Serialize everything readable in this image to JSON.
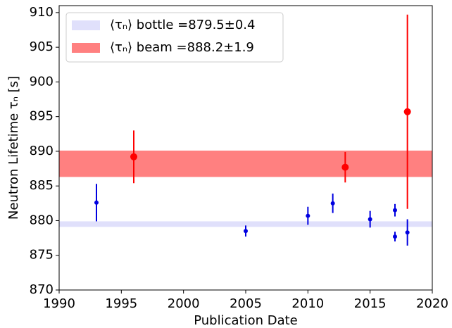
{
  "chart_data": {
    "type": "errorbar",
    "xlabel": "Publication Date",
    "ylabel": "Neutron Lifetime τₙ [s]",
    "xlim": [
      1990,
      2020
    ],
    "xticks": [
      1990,
      1995,
      2000,
      2005,
      2010,
      2015,
      2020
    ],
    "ylim": [
      870,
      911
    ],
    "yticks": [
      870,
      875,
      880,
      885,
      890,
      895,
      900,
      905,
      910
    ],
    "legend": "upper left",
    "bands": [
      {
        "name": "⟨τₙ⟩ bottle =879.5±0.4",
        "color": "#e0e0fb",
        "value": 879.5,
        "error": 0.4
      },
      {
        "name": "⟨τₙ⟩ beam =888.2±1.9",
        "color": "#ff8080",
        "value": 888.2,
        "error": 1.9
      }
    ],
    "series": [
      {
        "color": "#0000e0",
        "x": [
          1993,
          2005,
          2010,
          2012,
          2015,
          2017,
          2017,
          2018
        ],
        "values": [
          882.6,
          878.5,
          880.7,
          882.5,
          880.2,
          881.5,
          877.7,
          878.3
        ],
        "errors": [
          2.7,
          0.8,
          1.3,
          1.4,
          1.2,
          0.9,
          0.7,
          1.9
        ]
      },
      {
        "color": "#ff0000",
        "x": [
          1996,
          2013,
          2018
        ],
        "values": [
          889.2,
          887.7,
          895.7
        ],
        "errors": [
          3.8,
          2.2,
          14.0
        ]
      }
    ]
  }
}
